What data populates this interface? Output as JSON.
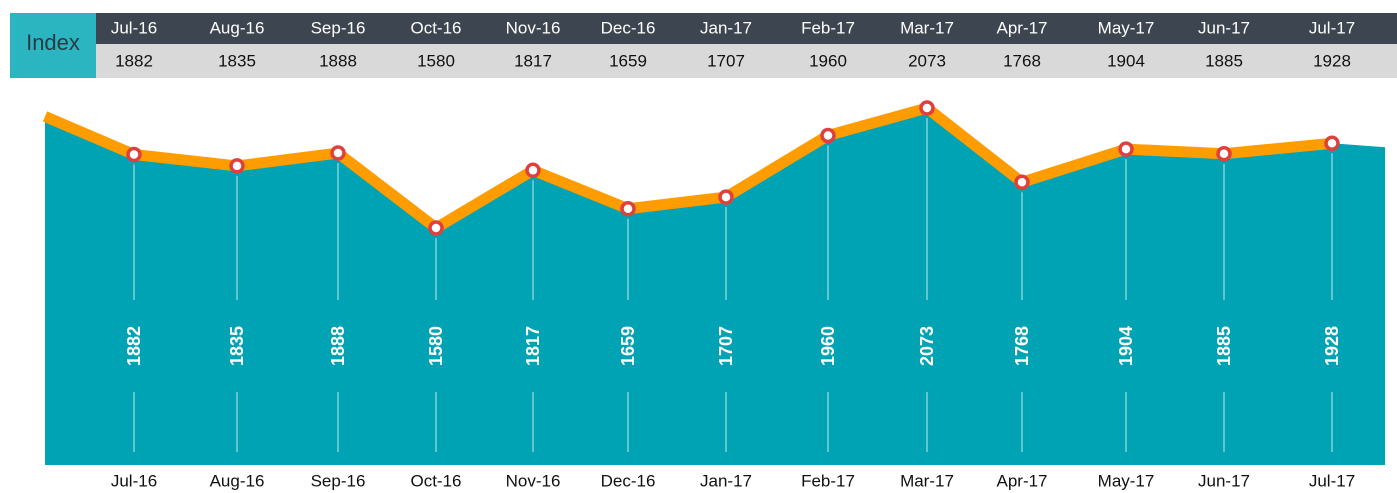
{
  "chart_data": {
    "type": "line",
    "index_label": "Index",
    "categories": [
      "Jul-16",
      "Aug-16",
      "Sep-16",
      "Oct-16",
      "Nov-16",
      "Dec-16",
      "Jan-17",
      "Feb-17",
      "Mar-17",
      "Apr-17",
      "May-17",
      "Jun-17",
      "Jul-17"
    ],
    "values": [
      1882,
      1835,
      1888,
      1580,
      1817,
      1659,
      1707,
      1960,
      2073,
      1768,
      1904,
      1885,
      1928
    ],
    "color": "#ff9c00",
    "area_color": "#00a3b4",
    "marker_color": "#e0403c"
  }
}
